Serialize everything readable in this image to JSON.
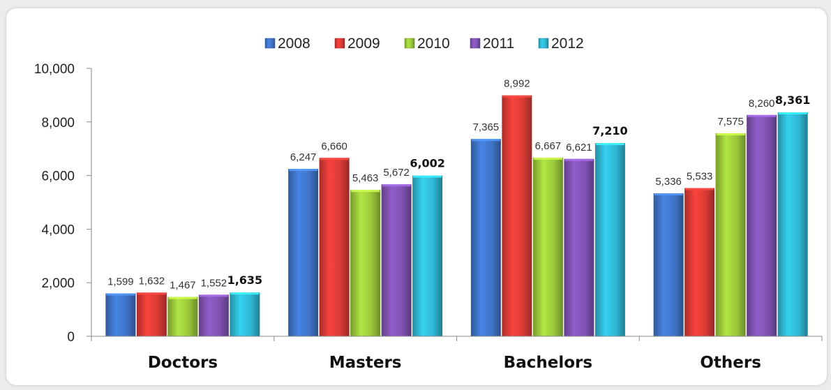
{
  "chart_data": {
    "type": "bar",
    "categories": [
      "Doctors",
      "Masters",
      "Bachelors",
      "Others"
    ],
    "series": [
      {
        "name": "2008",
        "color": "#3f73c6",
        "values": [
          1599,
          6247,
          7365,
          5336
        ]
      },
      {
        "name": "2009",
        "color": "#d93a35",
        "values": [
          1632,
          6660,
          8992,
          5533
        ]
      },
      {
        "name": "2010",
        "color": "#9ac83a",
        "values": [
          1467,
          5463,
          6667,
          7575
        ]
      },
      {
        "name": "2011",
        "color": "#7f52b0",
        "values": [
          1552,
          5672,
          6621,
          8260
        ]
      },
      {
        "name": "2012",
        "color": "#2fb6d2",
        "values": [
          1635,
          6002,
          7210,
          8361
        ]
      }
    ],
    "labels": [
      [
        "1,599",
        "6,247",
        "7,365",
        "5,336"
      ],
      [
        "1,632",
        "6,660",
        "8,992",
        "5,533"
      ],
      [
        "1,467",
        "5,463",
        "6,667",
        "7,575"
      ],
      [
        "1,552",
        "5,672",
        "6,621",
        "8,260"
      ],
      [
        "1,635",
        "6,002",
        "7,210",
        "8,361"
      ]
    ],
    "bold_series": "2012",
    "ylim": [
      0,
      10000
    ],
    "yticks": [
      0,
      2000,
      4000,
      6000,
      8000,
      10000
    ],
    "ytick_labels": [
      "0",
      "2,000",
      "4,000",
      "6,000",
      "8,000",
      "10,000"
    ],
    "legend_position": "top",
    "grid": false,
    "title": "",
    "xlabel": "",
    "ylabel": ""
  }
}
